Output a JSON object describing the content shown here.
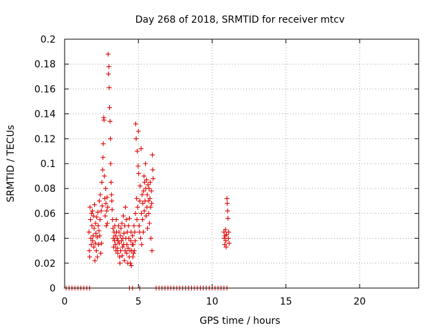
{
  "chart_data": {
    "type": "scatter",
    "title": "Day 268 of 2018, SRMTID for receiver mtcv",
    "xlabel": "GPS time / hours",
    "ylabel": "SRMTID / TECUs",
    "xlim": [
      0,
      24
    ],
    "ylim": [
      0,
      0.2
    ],
    "x_ticks": [
      0,
      5,
      10,
      15,
      20
    ],
    "x_tick_labels": [
      "0",
      "5",
      "10",
      "15",
      "20"
    ],
    "y_ticks": [
      0,
      0.02,
      0.04,
      0.06,
      0.08,
      0.1,
      0.12,
      0.14,
      0.16,
      0.18,
      0.2
    ],
    "y_tick_labels": [
      "0",
      "0.02",
      "0.04",
      "0.06",
      "0.08",
      "0.1",
      "0.12",
      "0.14",
      "0.16",
      "0.18",
      "0.2"
    ],
    "grid": true,
    "marker": "+",
    "marker_color": "#e00000",
    "series": [
      {
        "values": [
          [
            1.65,
            0.045
          ],
          [
            1.68,
            0.03
          ],
          [
            1.7,
            0.025
          ],
          [
            1.72,
            0.065
          ],
          [
            1.75,
            0.055
          ],
          [
            1.78,
            0.04
          ],
          [
            1.8,
            0.035
          ],
          [
            1.82,
            0.06
          ],
          [
            1.85,
            0.05
          ],
          [
            1.88,
            0.062
          ],
          [
            1.9,
            0.038
          ],
          [
            1.93,
            0.042
          ],
          [
            1.95,
            0.058
          ],
          [
            1.98,
            0.033
          ],
          [
            2.0,
            0.048
          ],
          [
            2.03,
            0.067
          ],
          [
            2.05,
            0.022
          ],
          [
            2.08,
            0.036
          ],
          [
            2.1,
            0.052
          ],
          [
            2.12,
            0.044
          ],
          [
            2.15,
            0.03
          ],
          [
            2.18,
            0.057
          ],
          [
            2.2,
            0.041
          ],
          [
            2.22,
            0.025
          ],
          [
            2.25,
            0.061
          ],
          [
            2.28,
            0.05
          ],
          [
            2.3,
            0.035
          ],
          [
            2.33,
            0.046
          ],
          [
            2.35,
            0.07
          ],
          [
            2.38,
            0.042
          ],
          [
            2.4,
            0.055
          ],
          [
            2.42,
            0.075
          ],
          [
            2.45,
            0.028
          ],
          [
            2.48,
            0.062
          ],
          [
            2.5,
            0.036
          ],
          [
            2.52,
            0.085
          ],
          [
            2.55,
            0.066
          ],
          [
            2.58,
            0.095
          ],
          [
            2.6,
            0.105
          ],
          [
            2.62,
            0.116
          ],
          [
            2.65,
            0.137
          ],
          [
            2.67,
            0.135
          ],
          [
            2.7,
            0.09
          ],
          [
            2.72,
            0.072
          ],
          [
            2.75,
            0.058
          ],
          [
            2.78,
            0.08
          ],
          [
            2.8,
            0.068
          ],
          [
            2.82,
            0.05
          ],
          [
            2.85,
            0.062
          ],
          [
            2.88,
            0.073
          ],
          [
            2.9,
            0.052
          ],
          [
            2.92,
            0.065
          ],
          [
            2.95,
            0.188
          ],
          [
            2.97,
            0.172
          ],
          [
            3.0,
            0.178
          ],
          [
            3.02,
            0.161
          ],
          [
            3.05,
            0.145
          ],
          [
            3.08,
            0.134
          ],
          [
            3.1,
            0.12
          ],
          [
            3.12,
            0.1
          ],
          [
            3.15,
            0.085
          ],
          [
            3.18,
            0.075
          ],
          [
            3.2,
            0.07
          ],
          [
            3.22,
            0.063
          ],
          [
            3.25,
            0.055
          ],
          [
            3.28,
            0.048
          ],
          [
            3.3,
            0.04
          ],
          [
            3.33,
            0.033
          ],
          [
            3.35,
            0.045
          ],
          [
            3.38,
            0.038
          ],
          [
            3.4,
            0.05
          ],
          [
            3.43,
            0.042
          ],
          [
            3.45,
            0.035
          ],
          [
            3.48,
            0.03
          ],
          [
            3.5,
            0.055
          ],
          [
            3.52,
            0.045
          ],
          [
            3.55,
            0.04
          ],
          [
            3.58,
            0.032
          ],
          [
            3.6,
            0.028
          ],
          [
            3.62,
            0.038
          ],
          [
            3.65,
            0.05
          ],
          [
            3.68,
            0.045
          ],
          [
            3.7,
            0.036
          ],
          [
            3.72,
            0.025
          ],
          [
            3.75,
            0.02
          ],
          [
            3.78,
            0.042
          ],
          [
            3.8,
            0.03
          ],
          [
            3.82,
            0.048
          ],
          [
            3.85,
            0.038
          ],
          [
            3.88,
            0.052
          ],
          [
            3.9,
            0.026
          ],
          [
            3.93,
            0.033
          ],
          [
            3.95,
            0.04
          ],
          [
            3.98,
            0.058
          ],
          [
            4.0,
            0.035
          ],
          [
            4.02,
            0.044
          ],
          [
            4.05,
            0.022
          ],
          [
            4.08,
            0.05
          ],
          [
            4.1,
            0.03
          ],
          [
            4.12,
            0.065
          ],
          [
            4.15,
            0.04
          ],
          [
            4.18,
            0.055
          ],
          [
            4.2,
            0.028
          ],
          [
            4.22,
            0.035
          ],
          [
            4.25,
            0.045
          ],
          [
            4.28,
            0.02
          ],
          [
            4.3,
            0.032
          ],
          [
            4.33,
            0.05
          ],
          [
            4.35,
            0.04
          ],
          [
            4.38,
            0.025
          ],
          [
            4.4,
            0.056
          ],
          [
            4.43,
            0.03
          ],
          [
            4.45,
            0.02
          ],
          [
            4.48,
            0.038
          ],
          [
            4.5,
            0.045
          ],
          [
            4.52,
            0.018
          ],
          [
            4.55,
            0.03
          ],
          [
            4.58,
            0.035
          ],
          [
            4.6,
            0.042
          ],
          [
            4.62,
            0.025
          ],
          [
            4.65,
            0.035
          ],
          [
            4.68,
            0.028
          ],
          [
            4.7,
            0.05
          ],
          [
            4.72,
            0.03
          ],
          [
            4.75,
            0.045
          ],
          [
            4.78,
            0.038
          ],
          [
            4.8,
            0.06
          ],
          [
            4.82,
            0.132
          ],
          [
            4.85,
            0.12
          ],
          [
            4.88,
            0.072
          ],
          [
            4.9,
            0.055
          ],
          [
            4.92,
            0.11
          ],
          [
            4.95,
            0.065
          ],
          [
            4.98,
            0.098
          ],
          [
            5.0,
            0.126
          ],
          [
            5.02,
            0.092
          ],
          [
            5.05,
            0.05
          ],
          [
            5.08,
            0.045
          ],
          [
            5.1,
            0.07
          ],
          [
            5.12,
            0.082
          ],
          [
            5.15,
            0.04
          ],
          [
            5.18,
            0.112
          ],
          [
            5.2,
            0.06
          ],
          [
            5.22,
            0.035
          ],
          [
            5.25,
            0.075
          ],
          [
            5.28,
            0.055
          ],
          [
            5.3,
            0.068
          ],
          [
            5.33,
            0.045
          ],
          [
            5.35,
            0.078
          ],
          [
            5.38,
            0.09
          ],
          [
            5.4,
            0.062
          ],
          [
            5.42,
            0.085
          ],
          [
            5.45,
            0.07
          ],
          [
            5.48,
            0.1
          ],
          [
            5.5,
            0.08
          ],
          [
            5.52,
            0.058
          ],
          [
            5.55,
            0.087
          ],
          [
            5.58,
            0.065
          ],
          [
            5.6,
            0.075
          ],
          [
            5.62,
            0.048
          ],
          [
            5.65,
            0.083
          ],
          [
            5.68,
            0.07
          ],
          [
            5.7,
            0.06
          ],
          [
            5.72,
            0.08
          ],
          [
            5.75,
            0.052
          ],
          [
            5.78,
            0.072
          ],
          [
            5.8,
            0.085
          ],
          [
            5.82,
            0.065
          ],
          [
            5.85,
            0.04
          ],
          [
            5.88,
            0.078
          ],
          [
            5.9,
            0.068
          ],
          [
            5.92,
            0.03
          ],
          [
            5.95,
            0.107
          ],
          [
            5.97,
            0.095
          ],
          [
            6.0,
            0.088
          ],
          [
            10.8,
            0.045
          ],
          [
            10.82,
            0.04
          ],
          [
            10.85,
            0.035
          ],
          [
            10.88,
            0.042
          ],
          [
            10.9,
            0.047
          ],
          [
            10.93,
            0.038
          ],
          [
            10.95,
            0.033
          ],
          [
            10.98,
            0.043
          ],
          [
            11.0,
            0.072
          ],
          [
            11.02,
            0.068
          ],
          [
            11.05,
            0.062
          ],
          [
            11.07,
            0.056
          ],
          [
            11.1,
            0.04
          ],
          [
            11.12,
            0.045
          ],
          [
            11.15,
            0.036
          ],
          [
            0.1,
            0.0
          ],
          [
            0.3,
            0.0
          ],
          [
            0.5,
            0.0
          ],
          [
            0.7,
            0.0
          ],
          [
            0.9,
            0.0
          ],
          [
            1.1,
            0.0
          ],
          [
            1.3,
            0.0
          ],
          [
            1.5,
            0.0
          ],
          [
            1.7,
            0.0
          ],
          [
            4.4,
            0.0
          ],
          [
            4.6,
            0.0
          ],
          [
            5.1,
            0.0
          ],
          [
            6.2,
            0.0
          ],
          [
            6.4,
            0.0
          ],
          [
            6.6,
            0.0
          ],
          [
            6.8,
            0.0
          ],
          [
            7.0,
            0.0
          ],
          [
            7.2,
            0.0
          ],
          [
            7.4,
            0.0
          ],
          [
            7.6,
            0.0
          ],
          [
            7.8,
            0.0
          ],
          [
            8.0,
            0.0
          ],
          [
            8.2,
            0.0
          ],
          [
            8.4,
            0.0
          ],
          [
            8.6,
            0.0
          ],
          [
            8.8,
            0.0
          ],
          [
            9.0,
            0.0
          ],
          [
            9.2,
            0.0
          ],
          [
            9.4,
            0.0
          ],
          [
            9.6,
            0.0
          ],
          [
            9.8,
            0.0
          ],
          [
            10.0,
            0.0
          ],
          [
            10.2,
            0.0
          ],
          [
            10.4,
            0.0
          ],
          [
            10.6,
            0.0
          ],
          [
            10.8,
            0.0
          ],
          [
            11.0,
            0.0
          ]
        ]
      }
    ]
  }
}
